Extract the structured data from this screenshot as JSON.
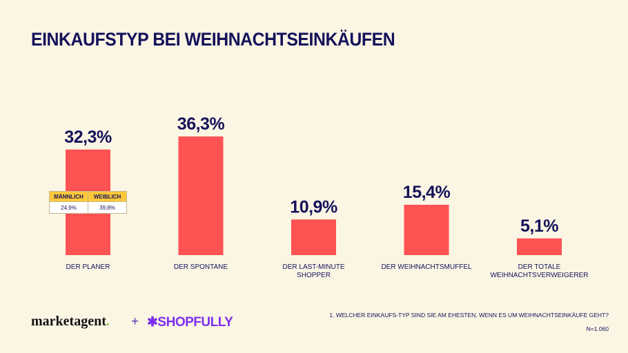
{
  "title": "EINKAUFSTYP BEI WEIHNACHTSEINKÄUFEN",
  "chart_data": {
    "type": "bar",
    "categories": [
      [
        "DER PLANER"
      ],
      [
        "DER SPONTANE"
      ],
      [
        "DER LAST-MINUTE",
        "SHOPPER"
      ],
      [
        "DER WEIHNACHTSMUFFEL"
      ],
      [
        "DER TOTALE",
        "WEIHNACHTSVERWEIGERER"
      ]
    ],
    "values": [
      32.3,
      36.3,
      10.9,
      15.4,
      5.1
    ],
    "labels": [
      "32,3%",
      "36,3%",
      "10,9%",
      "15,4%",
      "5,1%"
    ],
    "unit": "%",
    "color": "#ff5252",
    "grid": false
  },
  "gender_table": {
    "headers": [
      "MÄNNLICH",
      "WEIBLICH"
    ],
    "values": [
      "24,9%",
      "39,8%"
    ],
    "header_color": "#fcc83a"
  },
  "footer": {
    "logo_marketagent": "marketagent",
    "plus": "+",
    "logo_shopfully": "SHOPFULLY",
    "question": "1. WELCHER EINKAUFS-TYP SIND SIE AM EHESTEN, WENN ES UM WEIHNACHTSEINKÄUFE GEHT?",
    "sample": "N=1.060"
  }
}
